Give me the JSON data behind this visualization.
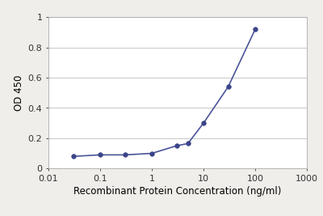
{
  "x": [
    0.03,
    0.1,
    0.3,
    1.0,
    3.0,
    5.0,
    10.0,
    30.0,
    100.0
  ],
  "y": [
    0.08,
    0.09,
    0.09,
    0.1,
    0.15,
    0.165,
    0.3,
    0.54,
    0.92
  ],
  "line_color": "#4a5498",
  "marker_color": "#3a4488",
  "marker_size": 4,
  "line_width": 1.2,
  "xlabel": "Recombinant Protein Concentration (ng/ml)",
  "ylabel": "OD 450",
  "xlim": [
    0.01,
    1000
  ],
  "ylim": [
    0,
    1.0
  ],
  "yticks": [
    0,
    0.2,
    0.4,
    0.6,
    0.8,
    1.0
  ],
  "ytick_labels": [
    "0",
    "0.2",
    "0.4",
    "0.6",
    "0.8",
    "1"
  ],
  "xtick_labels": [
    "0.01",
    "0.1",
    "1",
    "10",
    "100",
    "1000"
  ],
  "xtick_values": [
    0.01,
    0.1,
    1,
    10,
    100,
    1000
  ],
  "grid_color": "#c8c8c8",
  "figure_background": "#f0eeeb",
  "plot_background": "#ffffff",
  "xlabel_fontsize": 8.5,
  "ylabel_fontsize": 8.5,
  "tick_fontsize": 8
}
